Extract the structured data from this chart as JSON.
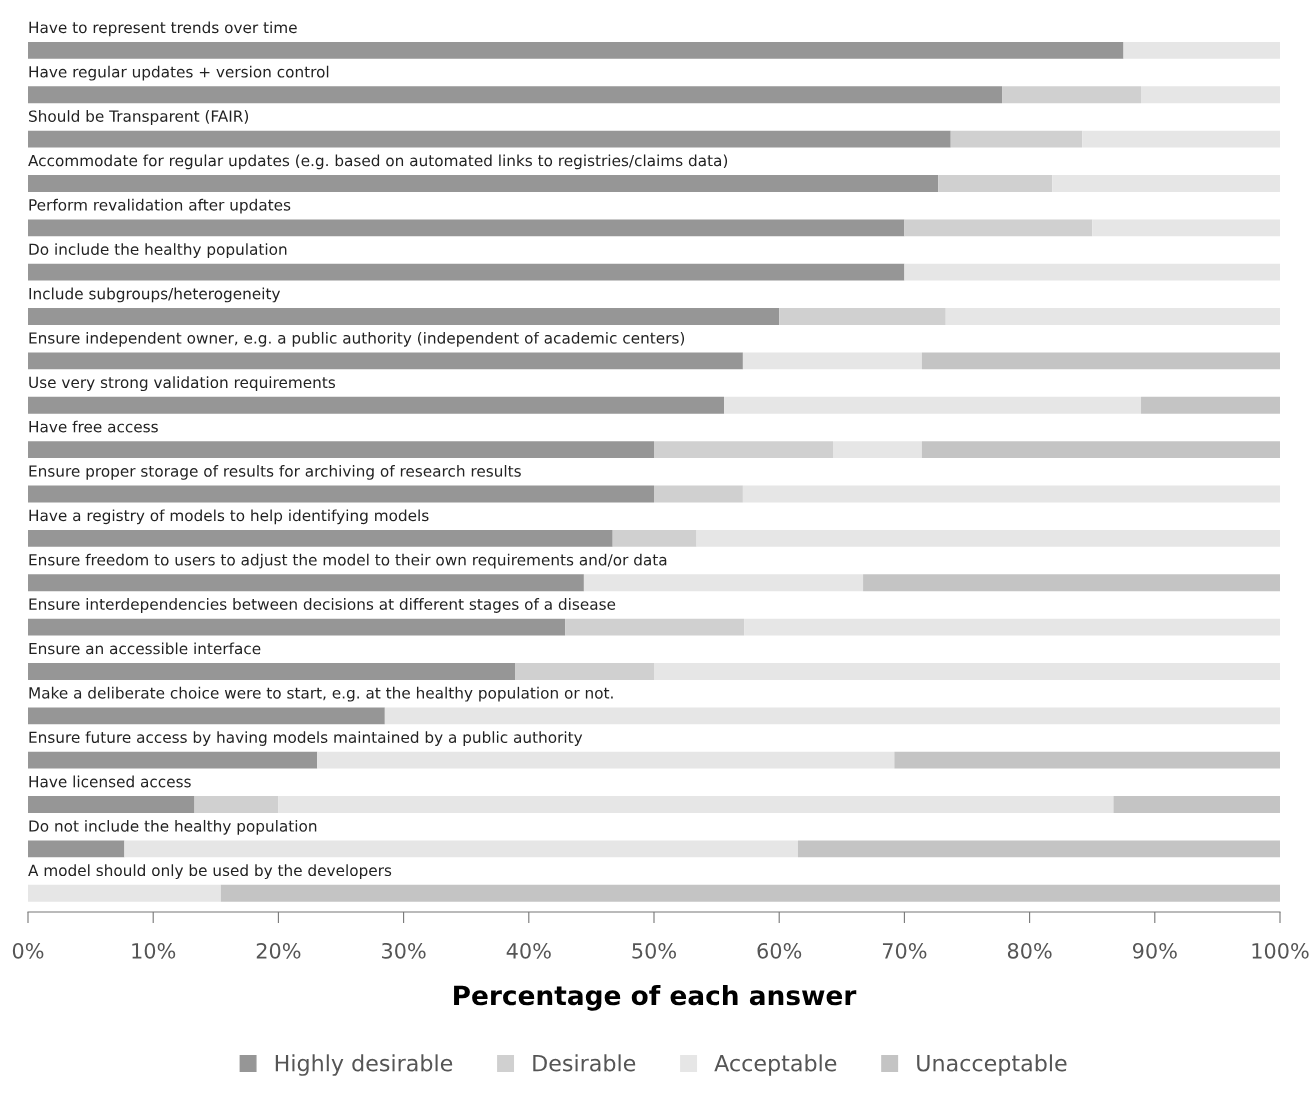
{
  "chart_data": {
    "type": "bar",
    "orientation": "horizontal",
    "stacked": true,
    "xlabel": "Percentage of each answer",
    "categories": [
      "Have to represent trends over time",
      "Have regular updates + version control",
      "Should be Transparent (FAIR)",
      "Accommodate for regular updates (e.g. based on automated links to registries/claims data)",
      "Perform revalidation after updates",
      "Do include the healthy population",
      "Include subgroups/heterogeneity",
      "Ensure independent owner, e.g. a public authority (independent of academic centers)",
      "Use very strong validation requirements",
      "Have free access",
      "Ensure proper storage of results for archiving of research results",
      "Have a registry of models to help identifying models",
      "Ensure freedom to users to adjust the model to their own requirements and/or data",
      "Ensure interdependencies between decisions at different stages of a disease",
      "Ensure an accessible interface",
      "Make a deliberate choice were to start, e.g. at the healthy population or not.",
      "Ensure future access by having models maintained by a public authority",
      "Have licensed access",
      "Do not include the healthy population",
      "A model should only be used by the developers"
    ],
    "series": [
      {
        "name": "Highly desirable",
        "color": "#969696",
        "values": [
          87.5,
          77.8,
          73.7,
          72.7,
          70,
          70,
          60,
          57.1,
          55.6,
          50,
          50,
          46.7,
          44.4,
          42.9,
          38.9,
          28.5,
          23.1,
          13.3,
          7.7,
          0
        ]
      },
      {
        "name": "Desirable",
        "color": "#d0d0d0",
        "values": [
          0,
          11.1,
          10.5,
          9.1,
          15,
          0,
          13.3,
          0,
          0,
          14.3,
          7.1,
          6.7,
          0,
          14.3,
          11.1,
          0,
          0,
          6.7,
          0,
          0
        ]
      },
      {
        "name": "Acceptable",
        "color": "#e6e6e6",
        "values": [
          12.5,
          11.1,
          15.8,
          18.2,
          15,
          30,
          26.7,
          14.3,
          33.3,
          7.1,
          42.9,
          46.6,
          22.3,
          42.8,
          50,
          71.5,
          46.1,
          66.7,
          53.8,
          15.4
        ]
      },
      {
        "name": "Unacceptable",
        "color": "#c4c4c4",
        "values": [
          0,
          0,
          0,
          0,
          0,
          0,
          0,
          28.6,
          11.1,
          28.6,
          0,
          0,
          33.3,
          0,
          0,
          0,
          30.8,
          13.3,
          38.5,
          84.6
        ]
      }
    ],
    "xlim": [
      0,
      100
    ],
    "xticks": [
      {
        "value": 0,
        "label": "0%"
      },
      {
        "value": 10,
        "label": "10%"
      },
      {
        "value": 20,
        "label": "20%"
      },
      {
        "value": 30,
        "label": "30%"
      },
      {
        "value": 40,
        "label": "40%"
      },
      {
        "value": 50,
        "label": "50%"
      },
      {
        "value": 60,
        "label": "60%"
      },
      {
        "value": 70,
        "label": "70%"
      },
      {
        "value": 80,
        "label": "80%"
      },
      {
        "value": 90,
        "label": "90%"
      },
      {
        "value": 100,
        "label": "100%"
      }
    ],
    "grid": false,
    "legend": "bottom"
  }
}
